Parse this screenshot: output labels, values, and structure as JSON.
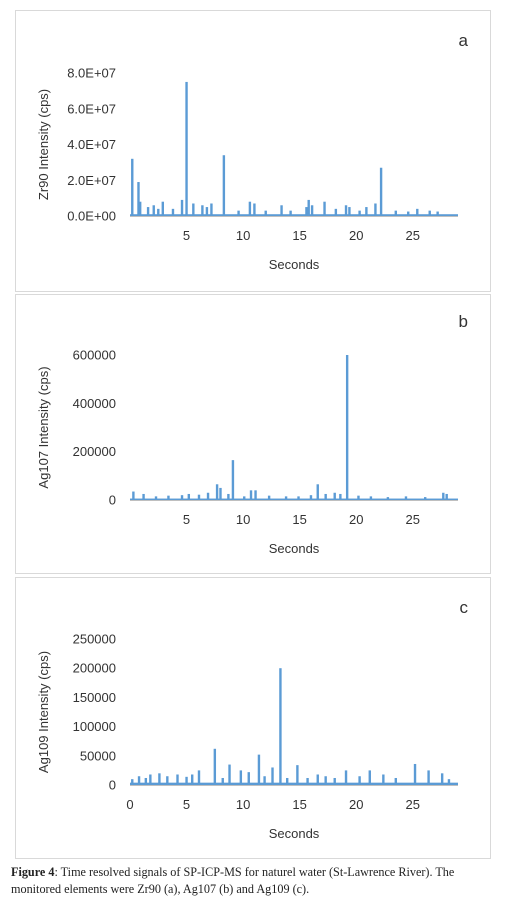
{
  "chart_data": [
    {
      "type": "bar",
      "panel_label": "a",
      "xlabel": "Seconds",
      "ylabel": "Zr90 Intensity (cps)",
      "ylim": [
        0,
        80000000
      ],
      "yticks": [
        0,
        20000000,
        40000000,
        60000000,
        80000000
      ],
      "ytick_labels": [
        "0.0E+00",
        "2.0E+07",
        "4.0E+07",
        "6.0E+07",
        "8.0E+07"
      ],
      "xlim": [
        0,
        29
      ],
      "xticks": [
        5,
        10,
        15,
        20,
        25
      ],
      "xtick_labels": [
        "5",
        "10",
        "15",
        "20",
        "25"
      ],
      "color": "#5b9bd5",
      "peaks_x": [
        0.2,
        0.75,
        0.9,
        1.6,
        2.1,
        2.5,
        2.9,
        3.8,
        4.6,
        5.0,
        5.6,
        6.4,
        6.8,
        7.2,
        8.3,
        9.6,
        10.6,
        11.0,
        12.0,
        13.4,
        14.2,
        15.6,
        15.8,
        16.1,
        17.2,
        18.2,
        19.1,
        19.4,
        20.3,
        20.9,
        21.7,
        22.2,
        23.5,
        24.6,
        25.4,
        26.5,
        27.2
      ],
      "peaks_y": [
        32000000,
        19000000,
        8000000,
        5000000,
        6000000,
        4000000,
        8000000,
        4000000,
        9000000,
        75000000,
        7000000,
        6000000,
        5000000,
        7000000,
        34000000,
        3000000,
        8000000,
        7000000,
        3000000,
        6000000,
        3000000,
        5000000,
        9000000,
        6000000,
        8000000,
        4000000,
        6000000,
        5000000,
        3000000,
        5000000,
        7000000,
        27000000,
        3000000,
        2500000,
        4000000,
        3000000,
        2500000
      ],
      "baseline": 1000000
    },
    {
      "type": "bar",
      "panel_label": "b",
      "xlabel": "Seconds",
      "ylabel": "Ag107 Intensity (cps)",
      "ylim": [
        0,
        600000
      ],
      "yticks": [
        0,
        200000,
        400000,
        600000
      ],
      "ytick_labels": [
        "0",
        "200000",
        "400000",
        "600000"
      ],
      "xlim": [
        0,
        29
      ],
      "xticks": [
        5,
        10,
        15,
        20,
        25
      ],
      "xtick_labels": [
        "5",
        "10",
        "15",
        "20",
        "25"
      ],
      "color": "#5b9bd5",
      "peaks_x": [
        0.3,
        1.2,
        2.3,
        3.4,
        4.6,
        5.2,
        6.1,
        6.9,
        7.7,
        8.0,
        8.7,
        9.1,
        10.1,
        10.7,
        11.1,
        12.3,
        13.8,
        14.9,
        16.0,
        16.6,
        17.3,
        18.1,
        18.6,
        19.2,
        20.2,
        21.3,
        22.8,
        24.4,
        26.1,
        27.7,
        28.0
      ],
      "peaks_y": [
        35000,
        25000,
        15000,
        18000,
        20000,
        25000,
        22000,
        30000,
        65000,
        50000,
        25000,
        165000,
        15000,
        40000,
        40000,
        18000,
        15000,
        15000,
        20000,
        65000,
        25000,
        30000,
        25000,
        600000,
        18000,
        15000,
        12000,
        15000,
        12000,
        30000,
        25000
      ],
      "baseline": 6000
    },
    {
      "type": "bar",
      "panel_label": "c",
      "xlabel": "Seconds",
      "ylabel": "Ag109 Intensity (cps)",
      "ylim": [
        0,
        250000
      ],
      "yticks": [
        0,
        50000,
        100000,
        150000,
        200000,
        250000
      ],
      "ytick_labels": [
        "0",
        "50000",
        "100000",
        "150000",
        "200000",
        "250000"
      ],
      "xlim": [
        0,
        29
      ],
      "xticks": [
        0,
        5,
        10,
        15,
        20,
        25
      ],
      "xtick_labels": [
        "0",
        "5",
        "10",
        "15",
        "20",
        "25"
      ],
      "color": "#5b9bd5",
      "peaks_x": [
        0.2,
        0.8,
        1.4,
        1.8,
        2.6,
        3.3,
        4.2,
        5.0,
        5.5,
        6.1,
        7.5,
        8.2,
        8.8,
        9.8,
        10.5,
        11.4,
        11.9,
        12.6,
        13.3,
        13.9,
        14.8,
        15.7,
        16.6,
        17.3,
        18.1,
        19.1,
        20.3,
        21.2,
        22.4,
        23.5,
        25.2,
        26.4,
        27.6,
        28.2
      ],
      "peaks_y": [
        10000,
        15000,
        12000,
        18000,
        20000,
        15000,
        18000,
        14000,
        18000,
        25000,
        62000,
        12000,
        35000,
        25000,
        22000,
        52000,
        15000,
        30000,
        200000,
        12000,
        34000,
        12000,
        18000,
        15000,
        12000,
        25000,
        15000,
        25000,
        18000,
        12000,
        36000,
        25000,
        20000,
        10000
      ],
      "baseline": 4000
    }
  ],
  "caption": {
    "label": "Figure 4",
    "text": ": Time resolved signals of SP-ICP-MS for naturel water (St-Lawrence River). The monitored elements were Zr90 (a), Ag107 (b) and Ag109 (c)."
  }
}
